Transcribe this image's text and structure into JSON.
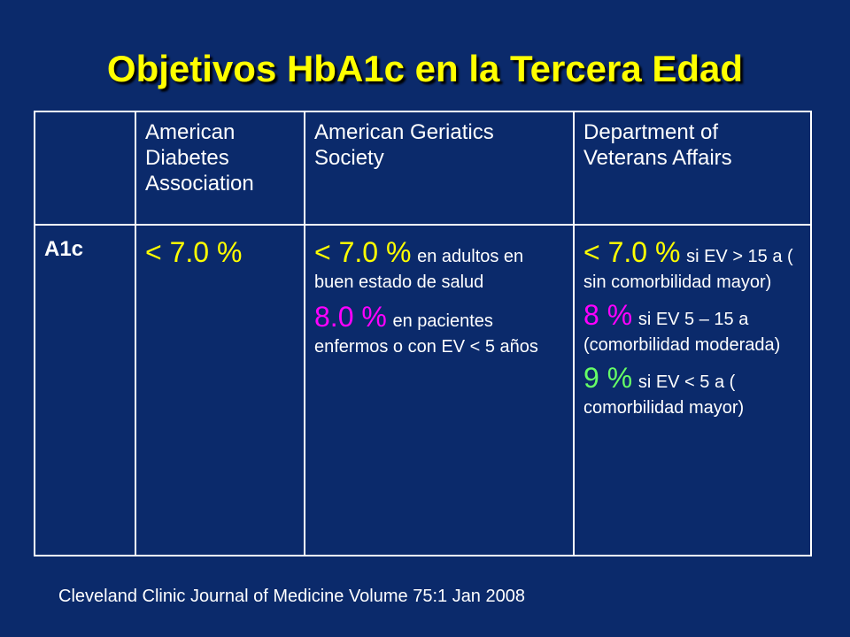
{
  "title": "Objetivos HbA1c en la Tercera Edad",
  "table": {
    "headers": [
      "",
      "American Diabetes Association",
      "American Geriatics Society",
      "Department of Veterans Affairs"
    ],
    "row_label": "A1c",
    "ada": {
      "value": "< 7.0 %"
    },
    "ags": {
      "entry1_value": "< 7.0 %",
      "entry1_note": "en adultos en buen estado de salud",
      "entry2_value": "8.0 %",
      "entry2_note": "en pacientes enfermos o con EV < 5 años"
    },
    "va": {
      "entry1_value": "< 7.0 %",
      "entry1_note": "si EV > 15 a ( sin comorbilidad mayor)",
      "entry2_value": "8 %",
      "entry2_note": "si EV  5 – 15 a (comorbilidad moderada)",
      "entry3_value": "9 %",
      "entry3_note": "si EV < 5 a ( comorbilidad mayor)"
    }
  },
  "citation": "Cleveland Clinic Journal of Medicine Volume 75:1 Jan 2008",
  "colors": {
    "background": "#0b2a6b",
    "title": "#ffff00",
    "value_primary": "#ffff00",
    "value_secondary": "#ff00ff",
    "value_tertiary": "#66ff66"
  }
}
